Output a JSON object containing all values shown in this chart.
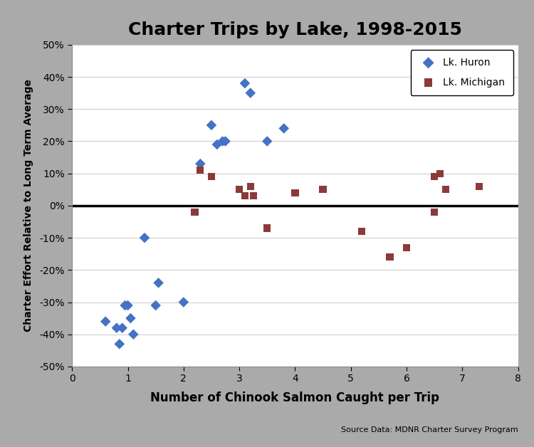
{
  "title": "Charter Trips by Lake, 1998-2015",
  "xlabel": "Number of Chinook Salmon Caught per Trip",
  "ylabel": "Charter Effort Relative to Long Term Average",
  "source": "Source Data: MDNR Charter Survey Program",
  "huron_x": [
    0.6,
    0.8,
    0.85,
    0.9,
    0.95,
    1.0,
    1.05,
    1.1,
    1.3,
    1.5,
    1.55,
    2.0,
    2.3,
    2.5,
    2.6,
    2.7,
    2.75,
    3.1,
    3.2,
    3.5,
    3.8
  ],
  "huron_y": [
    -0.36,
    -0.38,
    -0.43,
    -0.38,
    -0.31,
    -0.31,
    -0.35,
    -0.4,
    -0.1,
    -0.31,
    -0.24,
    -0.3,
    0.13,
    0.25,
    0.19,
    0.2,
    0.2,
    0.38,
    0.35,
    0.2,
    0.24
  ],
  "michigan_x": [
    2.2,
    2.3,
    2.5,
    3.0,
    3.1,
    3.2,
    3.25,
    3.5,
    4.0,
    4.5,
    5.2,
    5.7,
    6.0,
    6.5,
    6.5,
    6.6,
    6.7,
    7.3
  ],
  "michigan_y": [
    -0.02,
    0.11,
    0.09,
    0.05,
    0.03,
    0.06,
    0.03,
    -0.07,
    0.04,
    0.05,
    -0.08,
    -0.16,
    -0.13,
    -0.02,
    0.09,
    0.1,
    0.05,
    0.06
  ],
  "huron_color": "#4472C4",
  "michigan_color": "#8B3A3A",
  "xlim": [
    0,
    8
  ],
  "ylim": [
    -0.5,
    0.5
  ],
  "yticks": [
    -0.5,
    -0.4,
    -0.3,
    -0.2,
    -0.1,
    0.0,
    0.1,
    0.2,
    0.3,
    0.4,
    0.5
  ],
  "xticks": [
    0,
    1,
    2,
    3,
    4,
    5,
    6,
    7,
    8
  ],
  "background_color": "#ffffff",
  "frame_color": "#aaaaaa",
  "grid_color": "#d0d0d0"
}
